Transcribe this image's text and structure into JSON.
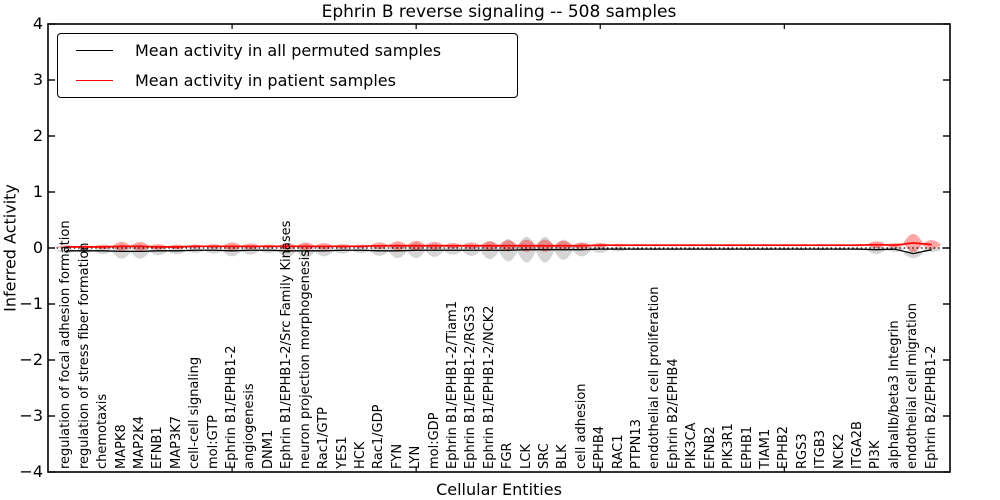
{
  "title": "Ephrin B reverse signaling -- 508 samples",
  "legend": {
    "items": [
      {
        "label": "Mean activity in all permuted samples",
        "color": "#000000"
      },
      {
        "label": "Mean activity in patient samples",
        "color": "#ff0000"
      }
    ]
  },
  "chart_data": {
    "type": "violin",
    "title": "Ephrin B reverse signaling -- 508 samples",
    "xlabel": "Cellular Entities",
    "ylabel": "Inferred Activity",
    "ylim": [
      -4,
      4
    ],
    "ytick_labels": [
      "4",
      "3",
      "2",
      "1",
      "0",
      "−1",
      "−2",
      "−3",
      "−4"
    ],
    "ytick_values": [
      4,
      3,
      2,
      1,
      0,
      -1,
      -2,
      -3,
      -4
    ],
    "xtick_mark_positions": [
      10,
      20,
      30,
      40
    ],
    "grid": false,
    "legend_position": "upper left",
    "zero_reference_line": 0,
    "categories": [
      "regulation of focal adhesion formation",
      "regulation of stress fiber formation",
      "chemotaxis",
      "MAPK8",
      "MAP2K4",
      "EFNB1",
      "MAP3K7",
      "cell-cell signaling",
      "mol:GTP",
      "Ephrin B1/EPHB1-2",
      "angiogenesis",
      "DNM1",
      "Ephrin B1/EPHB1-2/Src Family Kinases",
      "neuron projection morphogenesis",
      "Rac1/GTP",
      "YES1",
      "HCK",
      "Rac1/GDP",
      "FYN",
      "LYN",
      "mol:GDP",
      "Ephrin B1/EPHB1-2/Tiam1",
      "Ephrin B1/EPHB1-2/RGS3",
      "Ephrin B1/EPHB1-2/NCK2",
      "FGR",
      "LCK",
      "SRC",
      "BLK",
      "cell adhesion",
      "EPHB4",
      "RAC1",
      "PTPN13",
      "endothelial cell proliferation",
      "Ephrin B2/EPHB4",
      "PIK3CA",
      "EFNB2",
      "PIK3R1",
      "EPHB1",
      "TIAM1",
      "EPHB2",
      "RGS3",
      "ITGB3",
      "NCK2",
      "ITGA2B",
      "PI3K",
      "alphaIIb/beta3 Integrin",
      "endothelial cell migration",
      "Ephrin B2/EPHB1-2"
    ],
    "series": [
      {
        "name": "Mean activity in all permuted samples",
        "color": "#000000",
        "style": "solid",
        "values": [
          -0.05,
          -0.05,
          -0.05,
          -0.06,
          -0.06,
          -0.05,
          -0.05,
          -0.04,
          -0.04,
          -0.05,
          -0.04,
          -0.04,
          -0.05,
          -0.05,
          -0.05,
          -0.04,
          -0.04,
          -0.05,
          -0.05,
          -0.04,
          -0.04,
          -0.04,
          -0.04,
          -0.04,
          -0.04,
          -0.03,
          -0.03,
          -0.03,
          -0.03,
          -0.02,
          -0.02,
          -0.02,
          -0.02,
          -0.02,
          -0.02,
          -0.02,
          -0.02,
          -0.02,
          -0.02,
          -0.02,
          -0.02,
          -0.02,
          -0.02,
          -0.02,
          -0.03,
          -0.02,
          -0.1,
          -0.03
        ]
      },
      {
        "name": "Mean activity in patient samples",
        "color": "#ff0000",
        "style": "solid",
        "values": [
          0.02,
          0.02,
          0.02,
          0.03,
          0.03,
          0.02,
          0.02,
          0.03,
          0.03,
          0.03,
          0.03,
          0.03,
          0.03,
          0.03,
          0.03,
          0.03,
          0.03,
          0.04,
          0.04,
          0.04,
          0.04,
          0.04,
          0.04,
          0.04,
          0.04,
          0.04,
          0.04,
          0.04,
          0.04,
          0.05,
          0.05,
          0.05,
          0.05,
          0.05,
          0.05,
          0.05,
          0.05,
          0.05,
          0.05,
          0.05,
          0.05,
          0.05,
          0.05,
          0.05,
          0.06,
          0.05,
          0.09,
          0.06
        ]
      }
    ],
    "violin_halfwidths": {
      "permuted": [
        0.04,
        0.04,
        0.06,
        0.13,
        0.13,
        0.08,
        0.06,
        0.05,
        0.06,
        0.1,
        0.08,
        0.05,
        0.11,
        0.13,
        0.1,
        0.06,
        0.05,
        0.09,
        0.13,
        0.14,
        0.12,
        0.08,
        0.1,
        0.16,
        0.2,
        0.23,
        0.23,
        0.18,
        0.12,
        0.07,
        0.04,
        0.02,
        0.02,
        0.02,
        0.02,
        0.02,
        0.02,
        0.02,
        0.02,
        0.02,
        0.02,
        0.02,
        0.02,
        0.02,
        0.08,
        0.05,
        0.08,
        0.04
      ],
      "patient": [
        0.03,
        0.03,
        0.04,
        0.08,
        0.08,
        0.05,
        0.04,
        0.03,
        0.04,
        0.07,
        0.05,
        0.03,
        0.06,
        0.07,
        0.06,
        0.04,
        0.03,
        0.06,
        0.08,
        0.09,
        0.07,
        0.05,
        0.06,
        0.08,
        0.1,
        0.11,
        0.11,
        0.09,
        0.06,
        0.04,
        0.025,
        0.02,
        0.02,
        0.02,
        0.02,
        0.02,
        0.02,
        0.02,
        0.02,
        0.02,
        0.02,
        0.02,
        0.02,
        0.02,
        0.06,
        0.04,
        0.16,
        0.08
      ]
    },
    "colors": {
      "permuted_fill": "#888888",
      "patient_fill": "#ff0000",
      "fill_opacity": 0.35,
      "axis": "#000000"
    }
  }
}
